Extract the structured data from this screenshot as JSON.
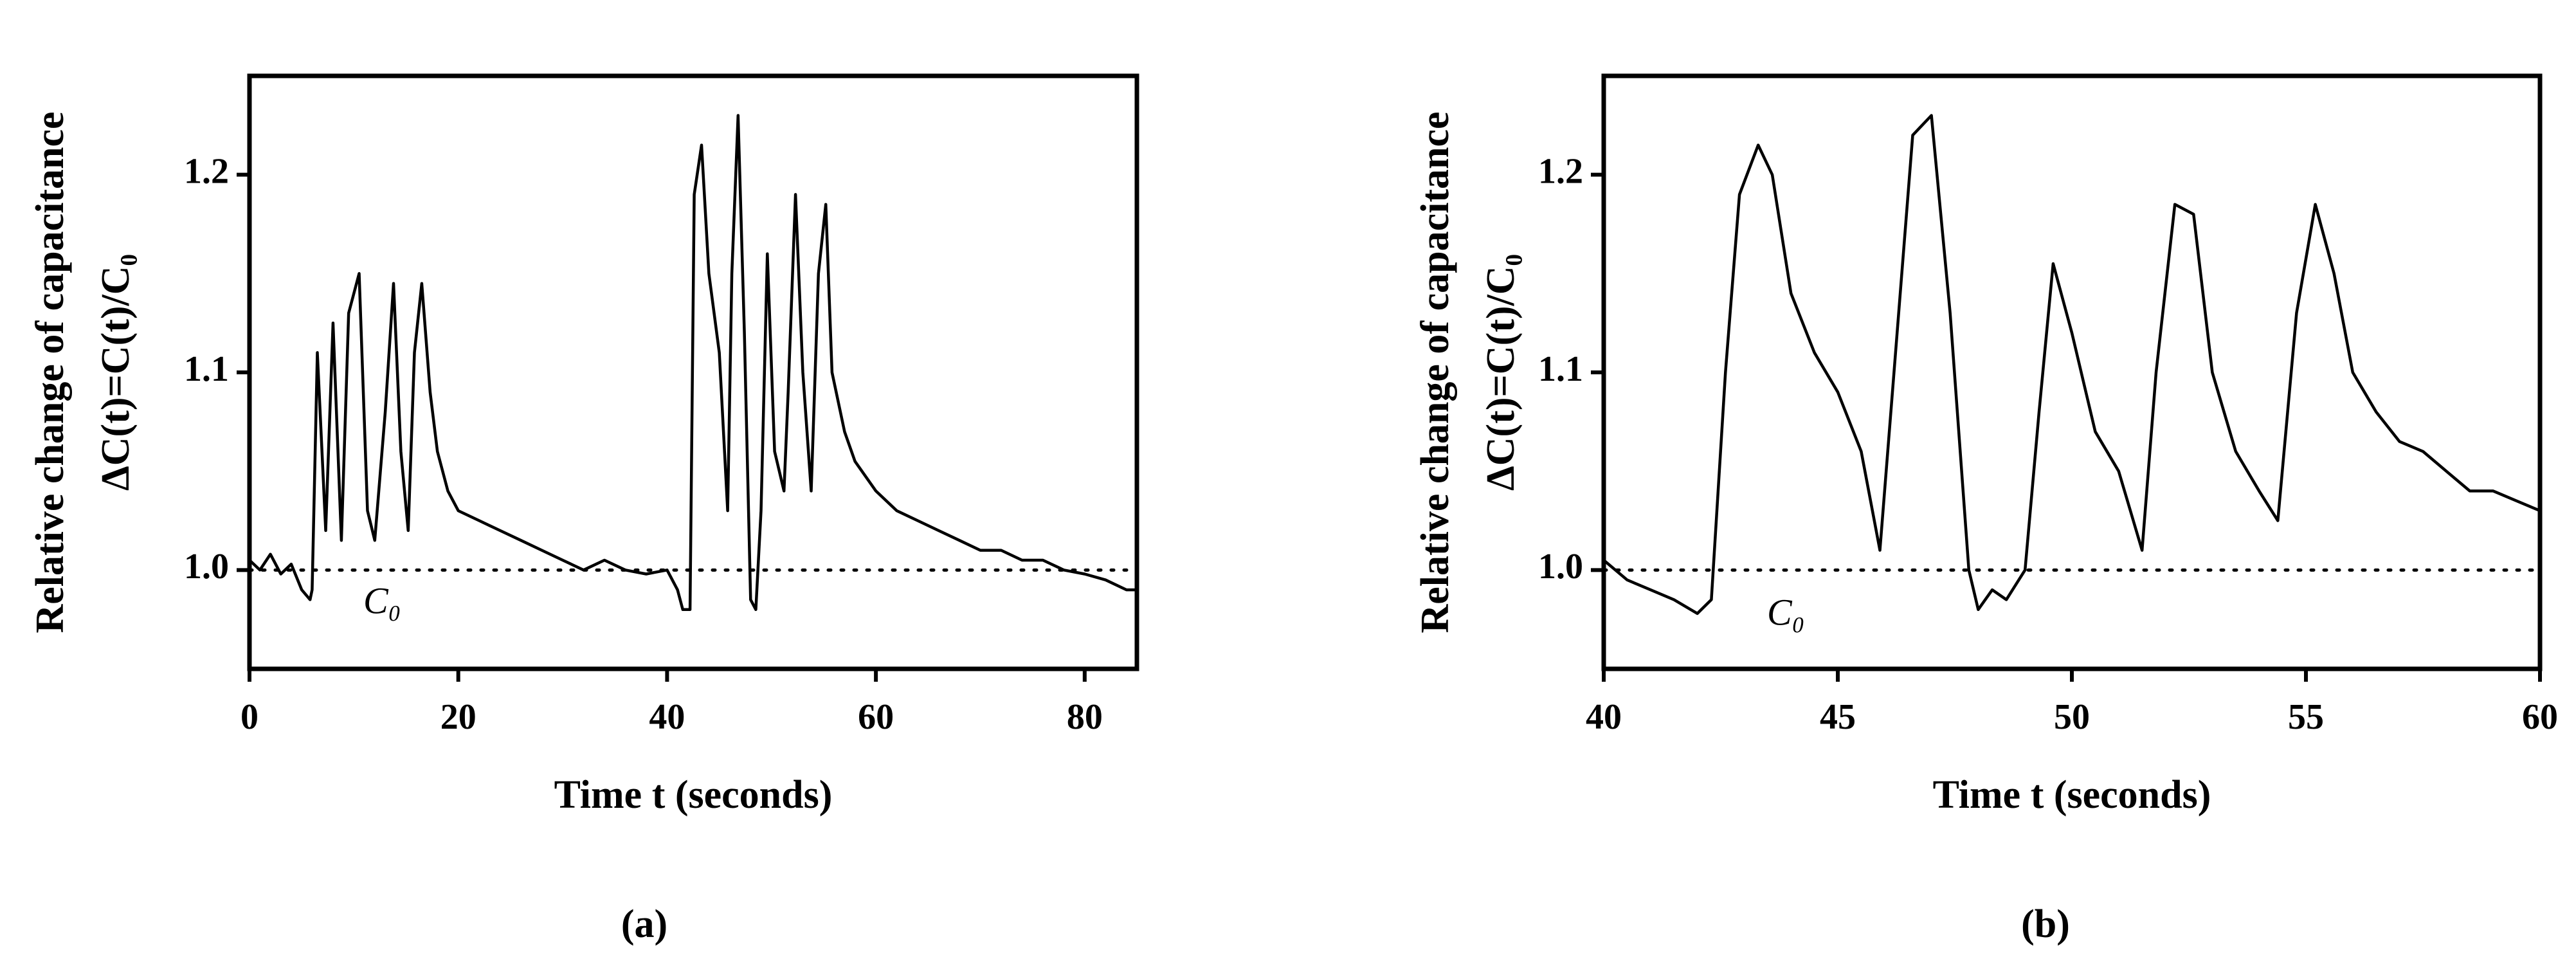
{
  "chart_data": [
    {
      "type": "line",
      "panel_label": "(a)",
      "xlabel": "Time t (seconds)",
      "ylabel": [
        "Relative change of capacitance",
        "ΔC(t)=C(t)/C₀"
      ],
      "annotation": "C₀",
      "reference_line": {
        "value": 1.0,
        "style": "dotted"
      },
      "color": "#000000",
      "xlim": [
        0,
        85
      ],
      "xticks": [
        0,
        20,
        40,
        60,
        80
      ],
      "ylim": [
        0.95,
        1.25
      ],
      "yticks": [
        {
          "value": 1.0,
          "label": "1.0"
        },
        1.1,
        1.2
      ],
      "x": [
        0,
        1,
        2,
        3,
        4,
        5,
        5.8,
        6,
        6.5,
        7.3,
        8,
        8.8,
        9.5,
        10.5,
        11.3,
        12,
        13,
        13.8,
        14.5,
        15.2,
        15.8,
        16.5,
        17.3,
        18,
        19,
        20,
        22,
        24,
        26,
        28,
        30,
        32,
        34,
        36,
        38,
        40,
        41,
        41.5,
        42.2,
        42.6,
        43.3,
        44,
        45,
        45.8,
        46.2,
        46.8,
        47.4,
        48,
        48.5,
        49,
        49.6,
        50.3,
        51.2,
        51.6,
        52.3,
        53,
        53.8,
        54.5,
        55.2,
        55.8,
        57,
        58,
        60,
        62,
        64,
        66,
        68,
        70,
        72,
        74,
        76,
        78,
        80,
        82,
        84,
        85
      ],
      "values": [
        1.005,
        1.0,
        1.008,
        0.998,
        1.003,
        0.99,
        0.985,
        0.99,
        1.11,
        1.02,
        1.125,
        1.015,
        1.13,
        1.15,
        1.03,
        1.015,
        1.08,
        1.145,
        1.06,
        1.02,
        1.11,
        1.145,
        1.09,
        1.06,
        1.04,
        1.03,
        1.025,
        1.02,
        1.015,
        1.01,
        1.005,
        1.0,
        1.005,
        1.0,
        0.998,
        1.0,
        0.99,
        0.98,
        0.98,
        1.19,
        1.215,
        1.15,
        1.11,
        1.03,
        1.15,
        1.23,
        1.12,
        0.985,
        0.98,
        1.03,
        1.16,
        1.06,
        1.04,
        1.09,
        1.19,
        1.1,
        1.04,
        1.15,
        1.185,
        1.1,
        1.07,
        1.055,
        1.04,
        1.03,
        1.025,
        1.02,
        1.015,
        1.01,
        1.01,
        1.005,
        1.005,
        1.0,
        0.998,
        0.995,
        0.99,
        0.99
      ]
    },
    {
      "type": "line",
      "panel_label": "(b)",
      "xlabel": "Time t (seconds)",
      "ylabel": [
        "Relative change of capacitance",
        "ΔC(t)=C(t)/C₀"
      ],
      "annotation": "C₀",
      "reference_line": {
        "value": 1.0,
        "style": "dotted"
      },
      "color": "#000000",
      "xlim": [
        40,
        60
      ],
      "xticks": [
        40,
        45,
        50,
        55,
        60
      ],
      "ylim": [
        0.95,
        1.25
      ],
      "yticks": [
        {
          "value": 1.0,
          "label": "1.0"
        },
        1.1,
        1.2
      ],
      "x": [
        40,
        40.5,
        41,
        41.5,
        42,
        42.3,
        42.6,
        42.9,
        43.3,
        43.6,
        44,
        44.5,
        45,
        45.5,
        45.9,
        46.2,
        46.6,
        47,
        47.4,
        47.8,
        48,
        48.3,
        48.6,
        49,
        49.3,
        49.6,
        50,
        50.5,
        51,
        51.5,
        51.8,
        52.2,
        52.6,
        53,
        53.5,
        54,
        54.4,
        54.8,
        55.2,
        55.6,
        56,
        56.5,
        57,
        57.5,
        58,
        58.5,
        59,
        59.5,
        60
      ],
      "values": [
        1.005,
        0.995,
        0.99,
        0.985,
        0.978,
        0.985,
        1.1,
        1.19,
        1.215,
        1.2,
        1.14,
        1.11,
        1.09,
        1.06,
        1.01,
        1.1,
        1.22,
        1.23,
        1.13,
        1.0,
        0.98,
        0.99,
        0.985,
        1.0,
        1.08,
        1.155,
        1.12,
        1.07,
        1.05,
        1.01,
        1.1,
        1.185,
        1.18,
        1.1,
        1.06,
        1.04,
        1.025,
        1.13,
        1.185,
        1.15,
        1.1,
        1.08,
        1.065,
        1.06,
        1.05,
        1.04,
        1.04,
        1.035,
        1.03
      ]
    }
  ]
}
